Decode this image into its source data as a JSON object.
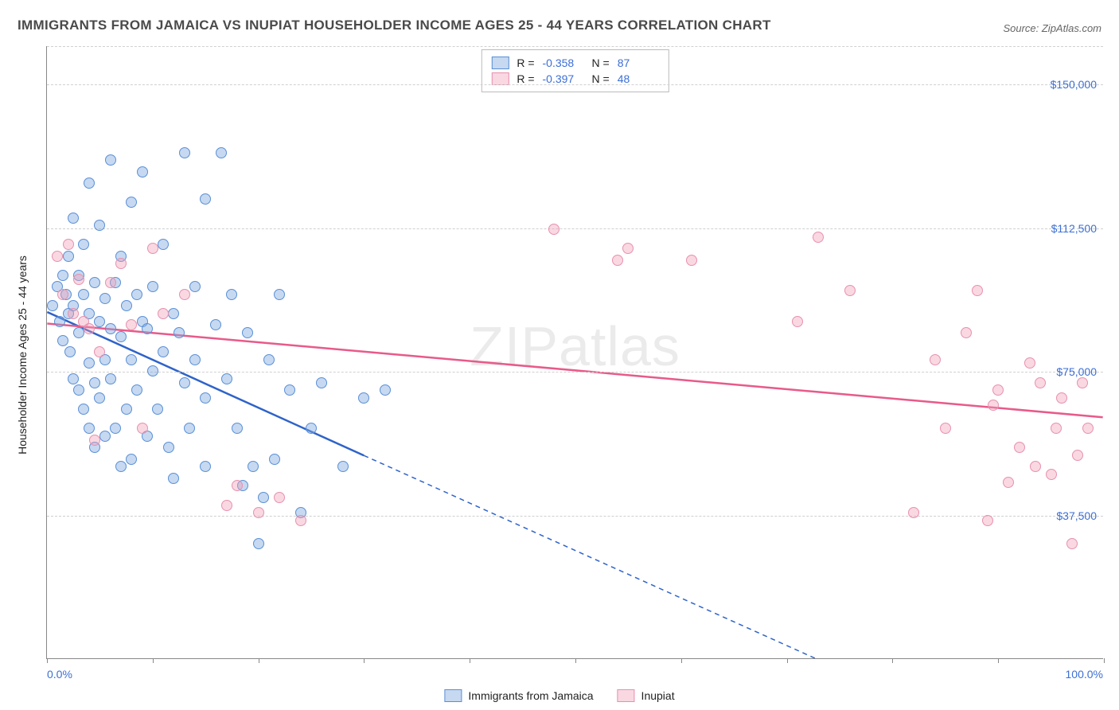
{
  "title": "IMMIGRANTS FROM JAMAICA VS INUPIAT HOUSEHOLDER INCOME AGES 25 - 44 YEARS CORRELATION CHART",
  "source_label": "Source: ZipAtlas.com",
  "watermark": "ZIPatlas",
  "chart": {
    "type": "scatter",
    "background_color": "#ffffff",
    "y_axis_title": "Householder Income Ages 25 - 44 years",
    "x_min_label": "0.0%",
    "x_max_label": "100.0%",
    "xlim": [
      0,
      100
    ],
    "ylim": [
      0,
      160000
    ],
    "x_tick_positions": [
      0,
      10,
      20,
      30,
      40,
      50,
      60,
      70,
      80,
      90,
      100
    ],
    "y_ticks": [
      {
        "v": 37500,
        "label": "$37,500"
      },
      {
        "v": 75000,
        "label": "$75,000"
      },
      {
        "v": 112500,
        "label": "$112,500"
      },
      {
        "v": 150000,
        "label": "$150,000"
      }
    ],
    "grid_color": "#d0d0d0",
    "marker_radius": 7,
    "series": [
      {
        "name": "Immigrants from Jamaica",
        "fill": "rgba(128,170,225,0.45)",
        "stroke": "#5a8fd6",
        "line_color": "#2e63c9",
        "R": "-0.358",
        "N": "87",
        "trend": {
          "x1": 0,
          "y1": 90500,
          "x2": 30,
          "y2": 53000,
          "x2_ext": 80,
          "y2_ext": -9000
        },
        "points": [
          [
            0.5,
            92000
          ],
          [
            1.0,
            97000
          ],
          [
            1.2,
            88000
          ],
          [
            1.5,
            100000
          ],
          [
            1.5,
            83000
          ],
          [
            1.8,
            95000
          ],
          [
            2.0,
            105000
          ],
          [
            2.0,
            90000
          ],
          [
            2.2,
            80000
          ],
          [
            2.5,
            115000
          ],
          [
            2.5,
            92000
          ],
          [
            2.5,
            73000
          ],
          [
            3.0,
            100000
          ],
          [
            3.0,
            85000
          ],
          [
            3.0,
            70000
          ],
          [
            3.5,
            108000
          ],
          [
            3.5,
            95000
          ],
          [
            3.5,
            65000
          ],
          [
            4.0,
            124000
          ],
          [
            4.0,
            90000
          ],
          [
            4.0,
            77000
          ],
          [
            4.0,
            60000
          ],
          [
            4.5,
            98000
          ],
          [
            4.5,
            72000
          ],
          [
            4.5,
            55000
          ],
          [
            5.0,
            113000
          ],
          [
            5.0,
            88000
          ],
          [
            5.0,
            68000
          ],
          [
            5.5,
            94000
          ],
          [
            5.5,
            78000
          ],
          [
            5.5,
            58000
          ],
          [
            6.0,
            130000
          ],
          [
            6.0,
            86000
          ],
          [
            6.0,
            73000
          ],
          [
            6.5,
            98000
          ],
          [
            6.5,
            60000
          ],
          [
            7.0,
            105000
          ],
          [
            7.0,
            84000
          ],
          [
            7.0,
            50000
          ],
          [
            7.5,
            92000
          ],
          [
            7.5,
            65000
          ],
          [
            8.0,
            119000
          ],
          [
            8.0,
            78000
          ],
          [
            8.0,
            52000
          ],
          [
            8.5,
            95000
          ],
          [
            8.5,
            70000
          ],
          [
            9.0,
            127000
          ],
          [
            9.0,
            88000
          ],
          [
            9.5,
            86000
          ],
          [
            9.5,
            58000
          ],
          [
            10.0,
            97000
          ],
          [
            10.0,
            75000
          ],
          [
            10.5,
            65000
          ],
          [
            11.0,
            108000
          ],
          [
            11.0,
            80000
          ],
          [
            11.5,
            55000
          ],
          [
            12.0,
            90000
          ],
          [
            12.0,
            47000
          ],
          [
            12.5,
            85000
          ],
          [
            13.0,
            132000
          ],
          [
            13.0,
            72000
          ],
          [
            13.5,
            60000
          ],
          [
            14.0,
            97000
          ],
          [
            14.0,
            78000
          ],
          [
            15.0,
            120000
          ],
          [
            15.0,
            50000
          ],
          [
            15.0,
            68000
          ],
          [
            16.0,
            87000
          ],
          [
            16.5,
            132000
          ],
          [
            17.0,
            73000
          ],
          [
            17.5,
            95000
          ],
          [
            18.0,
            60000
          ],
          [
            18.5,
            45000
          ],
          [
            19.0,
            85000
          ],
          [
            19.5,
            50000
          ],
          [
            20.0,
            30000
          ],
          [
            20.5,
            42000
          ],
          [
            21.0,
            78000
          ],
          [
            21.5,
            52000
          ],
          [
            22.0,
            95000
          ],
          [
            23.0,
            70000
          ],
          [
            24.0,
            38000
          ],
          [
            25.0,
            60000
          ],
          [
            26.0,
            72000
          ],
          [
            28.0,
            50000
          ],
          [
            30.0,
            68000
          ],
          [
            32.0,
            70000
          ]
        ]
      },
      {
        "name": "Inupiat",
        "fill": "rgba(240,158,182,0.40)",
        "stroke": "#e890ae",
        "line_color": "#e85a8a",
        "R": "-0.397",
        "N": "48",
        "trend": {
          "x1": 0,
          "y1": 87500,
          "x2": 100,
          "y2": 63000
        },
        "points": [
          [
            1.0,
            105000
          ],
          [
            1.5,
            95000
          ],
          [
            2.0,
            108000
          ],
          [
            2.5,
            90000
          ],
          [
            3.0,
            99000
          ],
          [
            3.5,
            88000
          ],
          [
            4.0,
            86000
          ],
          [
            4.5,
            57000
          ],
          [
            5.0,
            80000
          ],
          [
            6.0,
            98000
          ],
          [
            7.0,
            103000
          ],
          [
            8.0,
            87000
          ],
          [
            9.0,
            60000
          ],
          [
            10.0,
            107000
          ],
          [
            11.0,
            90000
          ],
          [
            13.0,
            95000
          ],
          [
            17.0,
            40000
          ],
          [
            18.0,
            45000
          ],
          [
            20.0,
            38000
          ],
          [
            22.0,
            42000
          ],
          [
            24.0,
            36000
          ],
          [
            48.0,
            112000
          ],
          [
            54.0,
            104000
          ],
          [
            55.0,
            107000
          ],
          [
            61.0,
            104000
          ],
          [
            71.0,
            88000
          ],
          [
            73.0,
            110000
          ],
          [
            76.0,
            96000
          ],
          [
            82.0,
            38000
          ],
          [
            84.0,
            78000
          ],
          [
            85.0,
            60000
          ],
          [
            87.0,
            85000
          ],
          [
            88.0,
            96000
          ],
          [
            89.0,
            36000
          ],
          [
            89.5,
            66000
          ],
          [
            90.0,
            70000
          ],
          [
            91.0,
            46000
          ],
          [
            92.0,
            55000
          ],
          [
            93.0,
            77000
          ],
          [
            93.5,
            50000
          ],
          [
            94.0,
            72000
          ],
          [
            95.0,
            48000
          ],
          [
            95.5,
            60000
          ],
          [
            96.0,
            68000
          ],
          [
            97.0,
            30000
          ],
          [
            97.5,
            53000
          ],
          [
            98.0,
            72000
          ],
          [
            98.5,
            60000
          ]
        ]
      }
    ]
  },
  "legend_labels": {
    "R": "R =",
    "N": "N ="
  }
}
